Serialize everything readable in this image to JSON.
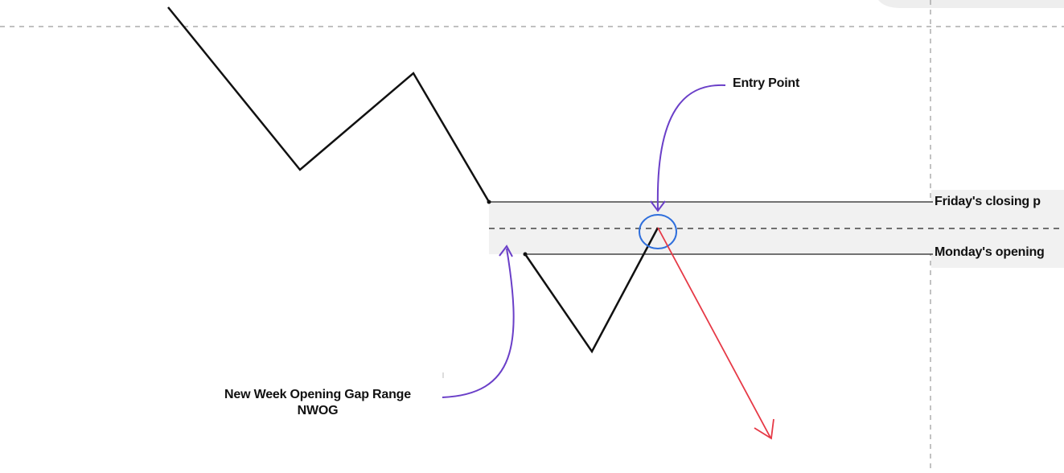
{
  "annotations": {
    "entry_point": "Entry Point",
    "friday_close": "Friday's closing p",
    "monday_open": "Monday's opening",
    "gap_range_line1": "New Week Opening Gap Range",
    "gap_range_line2": "NWOG"
  },
  "colors": {
    "price_line": "#111111",
    "level_line": "#222222",
    "gap_zone": "#f1f1f1",
    "midline_dash": "#222222",
    "callout_arrow": "#6a3fc8",
    "entry_circle": "#2f6fdc",
    "down_arrow": "#e63946",
    "guide_dash": "#9a9a9a"
  }
}
